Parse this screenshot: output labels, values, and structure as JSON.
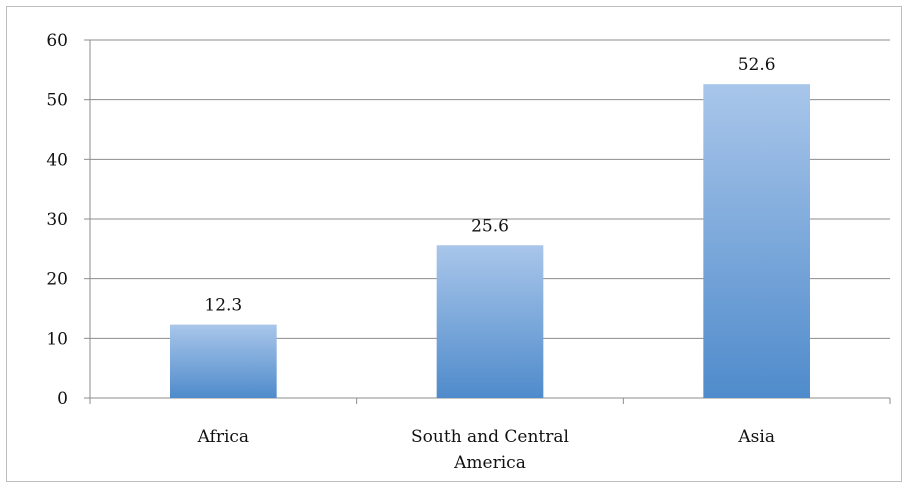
{
  "chart_data": {
    "type": "bar",
    "title": "",
    "xlabel": "",
    "ylabel": "",
    "categories": [
      [
        "Africa"
      ],
      [
        "South and Central",
        "America"
      ],
      [
        "Asia"
      ]
    ],
    "values": [
      12.3,
      25.6,
      52.6
    ],
    "data_labels": [
      "12.3",
      "25.6",
      "52.6"
    ],
    "ylim": [
      0,
      60
    ],
    "yticks": [
      0,
      10,
      20,
      30,
      40,
      50,
      60
    ],
    "ytick_labels": [
      "0",
      "10",
      "20",
      "30",
      "40",
      "50",
      "60"
    ],
    "grid": true,
    "legend": "none",
    "bar_gradient_top": "#a9c6ea",
    "bar_gradient_bottom": "#4f8bcb",
    "gridline_color": "#8c8c8c",
    "frame_color": "#bdbdbd"
  }
}
